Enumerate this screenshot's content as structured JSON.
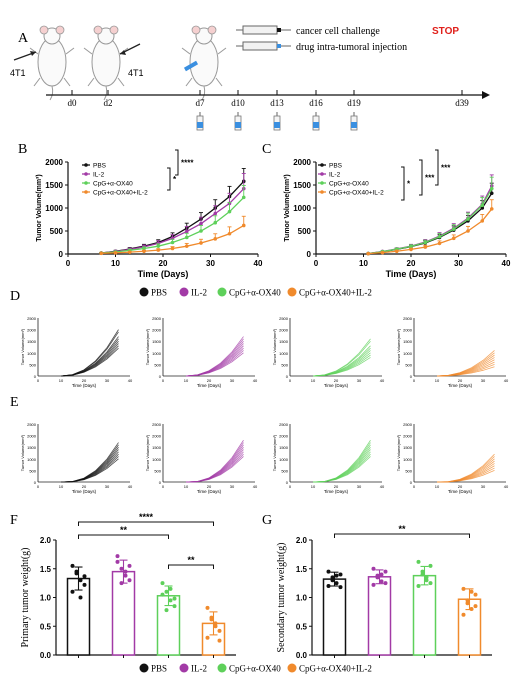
{
  "colors": {
    "PBS": "#111111",
    "IL2": "#a23aa6",
    "CpG_OX40": "#5ed05a",
    "CpG_OX40_IL2": "#f08a2c",
    "stop": "#e0201b",
    "syringe_blue": "#3a8fe0"
  },
  "panel_labels": [
    "A",
    "B",
    "C",
    "D",
    "E",
    "F",
    "G"
  ],
  "panel_a": {
    "mouse_labels": [
      "4T1",
      "4T1"
    ],
    "legend": {
      "challenge": "cancer cell challenge",
      "stop": "STOP",
      "injection": "drug intra-tumoral injection"
    },
    "timeline_days": [
      "d0",
      "d2",
      "d7",
      "d10",
      "d13",
      "d16",
      "d19",
      "d39"
    ],
    "injection_days": [
      "d7",
      "d10",
      "d13",
      "d16",
      "d19"
    ]
  },
  "legend_groups": [
    "PBS",
    "IL-2",
    "CpG+α-OX40",
    "CpG+α-OX40+IL-2"
  ],
  "chart_data": [
    {
      "panel": "B",
      "type": "line",
      "xlabel": "Time (Days)",
      "ylabel": "Tumor Volume(mm³)",
      "xlim": [
        0,
        40
      ],
      "ylim": [
        0,
        2000
      ],
      "xticks": [
        0,
        10,
        20,
        30,
        40
      ],
      "yticks": [
        0,
        500,
        1000,
        1500,
        2000
      ],
      "x": [
        7,
        10,
        13,
        16,
        19,
        22,
        25,
        28,
        31,
        34,
        37
      ],
      "series": [
        {
          "name": "PBS",
          "values": [
            20,
            60,
            110,
            170,
            250,
            380,
            560,
            760,
            1000,
            1250,
            1580
          ],
          "err": [
            10,
            20,
            30,
            40,
            60,
            80,
            110,
            140,
            180,
            220,
            280
          ]
        },
        {
          "name": "IL-2",
          "values": [
            20,
            55,
            100,
            155,
            230,
            340,
            490,
            660,
            880,
            1100,
            1420
          ],
          "err": [
            10,
            20,
            30,
            40,
            60,
            80,
            110,
            140,
            170,
            220,
            330
          ]
        },
        {
          "name": "CpG+α-OX40",
          "values": [
            20,
            45,
            80,
            120,
            170,
            250,
            360,
            500,
            680,
            920,
            1230
          ],
          "err": [
            10,
            15,
            25,
            35,
            50,
            70,
            90,
            120,
            150,
            200,
            260
          ]
        },
        {
          "name": "CpG+α-OX40+IL-2",
          "values": [
            15,
            25,
            40,
            60,
            85,
            120,
            170,
            240,
            330,
            440,
            620
          ],
          "err": [
            5,
            10,
            15,
            20,
            30,
            40,
            60,
            80,
            110,
            150,
            200
          ]
        }
      ],
      "significance": [
        "****",
        "*"
      ]
    },
    {
      "panel": "C",
      "type": "line",
      "xlabel": "Time (Days)",
      "ylabel": "Tumor Volume(mm³)",
      "xlim": [
        0,
        40
      ],
      "ylim": [
        0,
        2000
      ],
      "xticks": [
        0,
        10,
        20,
        30,
        40
      ],
      "yticks": [
        0,
        500,
        1000,
        1500,
        2000
      ],
      "x": [
        11,
        14,
        17,
        20,
        23,
        26,
        29,
        32,
        35,
        37
      ],
      "series": [
        {
          "name": "PBS",
          "values": [
            10,
            50,
            100,
            160,
            240,
            360,
            520,
            720,
            1000,
            1320
          ],
          "err": [
            5,
            15,
            25,
            35,
            50,
            70,
            90,
            120,
            160,
            220
          ]
        },
        {
          "name": "IL-2",
          "values": [
            10,
            55,
            110,
            170,
            260,
            390,
            560,
            780,
            1080,
            1480
          ],
          "err": [
            5,
            15,
            25,
            40,
            55,
            75,
            100,
            130,
            180,
            240
          ]
        },
        {
          "name": "CpG+α-OX40",
          "values": [
            10,
            50,
            105,
            165,
            250,
            375,
            540,
            760,
            1060,
            1420
          ],
          "err": [
            5,
            15,
            25,
            35,
            50,
            70,
            95,
            130,
            170,
            250
          ]
        },
        {
          "name": "CpG+α-OX40+IL-2",
          "values": [
            8,
            30,
            60,
            100,
            150,
            230,
            340,
            500,
            720,
            980
          ],
          "err": [
            4,
            10,
            20,
            25,
            40,
            55,
            75,
            100,
            140,
            200
          ]
        }
      ],
      "significance": [
        "***",
        "***",
        "*"
      ]
    },
    {
      "panel": "F",
      "type": "bar",
      "ylabel": "Primary tumor weight(g)",
      "ylim": [
        0,
        2.0
      ],
      "yticks": [
        "0.0",
        "0.5",
        "1.0",
        "1.5",
        "2.0"
      ],
      "categories": [
        "PBS",
        "IL-2",
        "CpG+α-OX40",
        "CpG+α-OX40+IL-2"
      ],
      "values": [
        1.33,
        1.45,
        1.03,
        0.55
      ],
      "err": [
        0.2,
        0.2,
        0.17,
        0.2
      ],
      "points": [
        [
          1.55,
          1.42,
          1.3,
          1.22,
          1.1,
          1.45,
          1.0,
          1.37
        ],
        [
          1.72,
          1.5,
          1.38,
          1.3,
          1.62,
          1.25,
          1.45,
          1.55
        ],
        [
          1.25,
          1.1,
          0.95,
          0.85,
          1.05,
          0.78,
          1.15,
          0.98
        ],
        [
          0.82,
          0.65,
          0.5,
          0.42,
          0.3,
          0.62,
          0.55,
          0.25
        ]
      ],
      "significance": [
        "****",
        "**",
        "**"
      ]
    },
    {
      "panel": "G",
      "type": "bar",
      "ylabel": "Secondary tumor weight(g)",
      "ylim": [
        0,
        2.0
      ],
      "yticks": [
        "0.0",
        "0.5",
        "1.0",
        "1.5",
        "2.0"
      ],
      "categories": [
        "PBS",
        "IL-2",
        "CpG+α-OX40",
        "CpG+α-OX40+IL-2"
      ],
      "values": [
        1.32,
        1.36,
        1.38,
        0.97
      ],
      "err": [
        0.12,
        0.12,
        0.16,
        0.18
      ],
      "points": [
        [
          1.45,
          1.35,
          1.25,
          1.4,
          1.2,
          1.3,
          1.38,
          1.18
        ],
        [
          1.5,
          1.38,
          1.28,
          1.45,
          1.22,
          1.35,
          1.4,
          1.25
        ],
        [
          1.62,
          1.45,
          1.3,
          1.55,
          1.2,
          1.4,
          1.35,
          1.25
        ],
        [
          1.15,
          0.9,
          0.8,
          1.05,
          0.7,
          0.95,
          1.1,
          0.85
        ]
      ],
      "significance": [
        "**"
      ]
    }
  ],
  "small_multiples": {
    "ylabel": "Tumor Volume(mm³)",
    "xlabel": "Time (Days)",
    "yticks": [
      0,
      500,
      1000,
      1500,
      2000,
      2500
    ],
    "xticks": [
      0,
      10,
      20,
      30,
      40
    ],
    "final_volumes": {
      "D": [
        [
          1300,
          1500,
          1700,
          1900,
          2000,
          1400,
          1600,
          1200
        ],
        [
          1000,
          1200,
          1400,
          1500,
          1600,
          1300,
          1700,
          1100
        ],
        [
          800,
          1000,
          1100,
          1300,
          1500,
          1600,
          900,
          1200
        ],
        [
          400,
          600,
          800,
          900,
          1000,
          700,
          1100,
          500
        ]
      ],
      "E": [
        [
          1100,
          1300,
          1400,
          1500,
          1600,
          1200,
          1700,
          1000
        ],
        [
          1200,
          1400,
          1500,
          1600,
          1700,
          1300,
          1100,
          1800
        ],
        [
          1200,
          1300,
          1500,
          1600,
          1700,
          1400,
          1800,
          1100
        ],
        [
          600,
          800,
          900,
          1000,
          1100,
          700,
          1200,
          500
        ]
      ]
    }
  }
}
